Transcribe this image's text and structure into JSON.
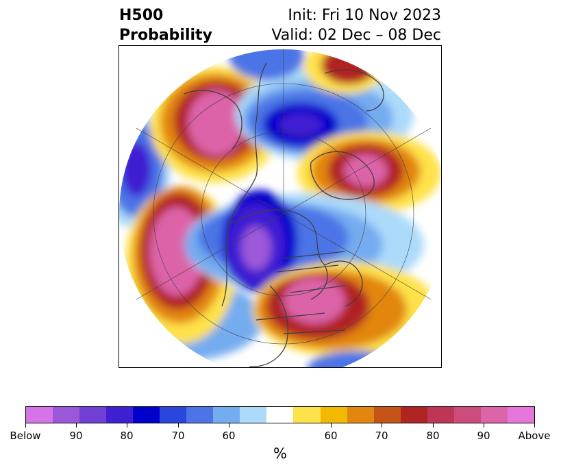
{
  "header": {
    "title_line1": "H500",
    "title_line2": "Probability",
    "init": "Init: Fri 10 Nov 2023",
    "valid": "Valid: 02 Dec – 08 Dec"
  },
  "colorbar": {
    "unit": "%",
    "colors": [
      "#d474e6",
      "#9b59d9",
      "#6f3fd6",
      "#3f1fd2",
      "#0000cc",
      "#2a46dc",
      "#4c74e6",
      "#74acf0",
      "#acdafa",
      "#ffffff",
      "#ffe24a",
      "#f3b800",
      "#e2860f",
      "#c45317",
      "#b02424",
      "#be3654",
      "#cc4c7c",
      "#dc64a8",
      "#e476dc"
    ],
    "tick_labels": [
      "Below",
      "90",
      "80",
      "70",
      "60",
      "60",
      "70",
      "80",
      "90",
      "Above"
    ]
  },
  "map": {
    "colors": {
      "blue_light": "#acdafa",
      "blue_mid": "#74acf0",
      "blue": "#4c74e6",
      "blue_dark": "#0000cc",
      "blue_deep": "#3f1fd2",
      "violet": "#9b59d9",
      "yellow": "#ffe24a",
      "orange": "#e2860f",
      "red": "#b02424",
      "pink": "#dc64a8",
      "coast": "#404040"
    }
  }
}
